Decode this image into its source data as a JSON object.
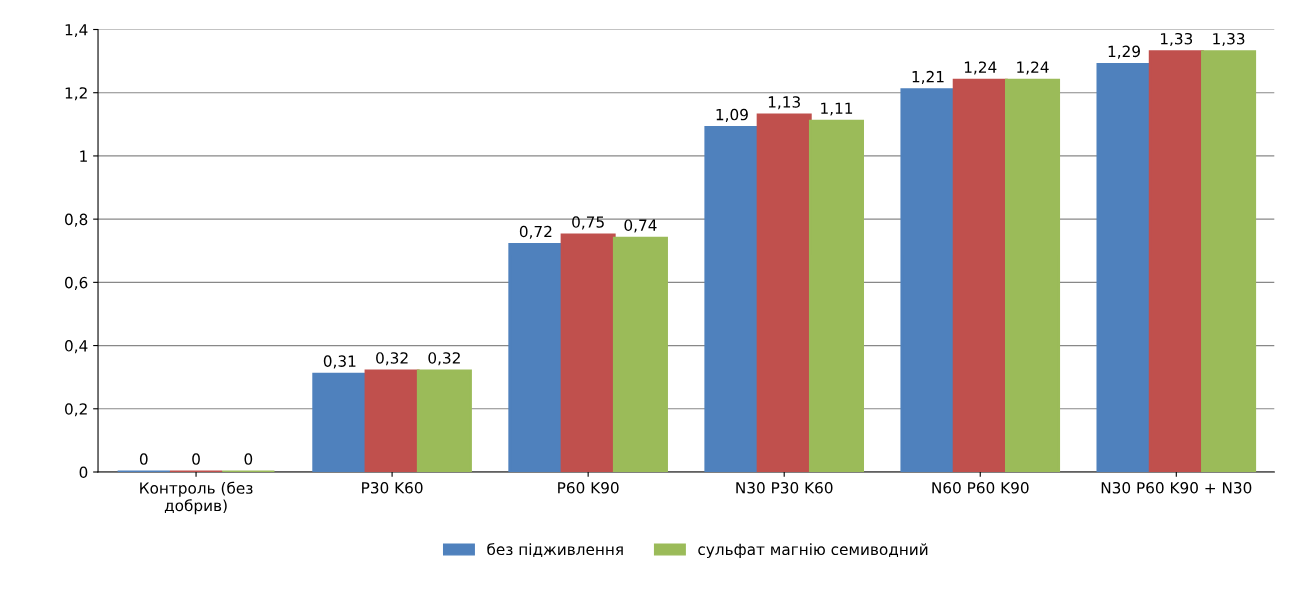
{
  "chart_data": {
    "type": "bar",
    "categories": [
      "Контроль (без\nдобрив)",
      "P30 K60",
      "P60 K90",
      "N30 P30 K60",
      "N60 P60 K90",
      "N30 P60 K90 + N30"
    ],
    "series": [
      {
        "name": "без підживлення",
        "color": "#4f81bd",
        "values": [
          0,
          0.31,
          0.72,
          1.09,
          1.21,
          1.29
        ],
        "value_labels": [
          "0",
          "0,31",
          "0,72",
          "1,09",
          "1,21",
          "1,29"
        ]
      },
      {
        "color": "#c0504d",
        "values": [
          0,
          0.32,
          0.75,
          1.13,
          1.24,
          1.33
        ],
        "value_labels": [
          "0",
          "0,32",
          "0,75",
          "1,13",
          "1,24",
          "1,33"
        ]
      },
      {
        "name": "сульфат магнію семиводний",
        "color": "#9bbb59",
        "values": [
          0,
          0.32,
          0.74,
          1.11,
          1.24,
          1.33
        ],
        "value_labels": [
          "0",
          "0,32",
          "0,74",
          "1,11",
          "1,24",
          "1,33"
        ]
      }
    ],
    "ylim": [
      0,
      1.4
    ],
    "yticks": [
      0,
      {
        "value": 0.2,
        "label": "0,2"
      },
      {
        "value": 0.4,
        "label": "0,4"
      },
      {
        "value": 0.6,
        "label": "0,6"
      },
      {
        "value": 0.8,
        "label": "0,8"
      },
      1,
      {
        "value": 1.2,
        "label": "1,2"
      },
      {
        "value": 1.4,
        "label": "1,4"
      }
    ],
    "grid": "y",
    "legend": "bottom"
  }
}
